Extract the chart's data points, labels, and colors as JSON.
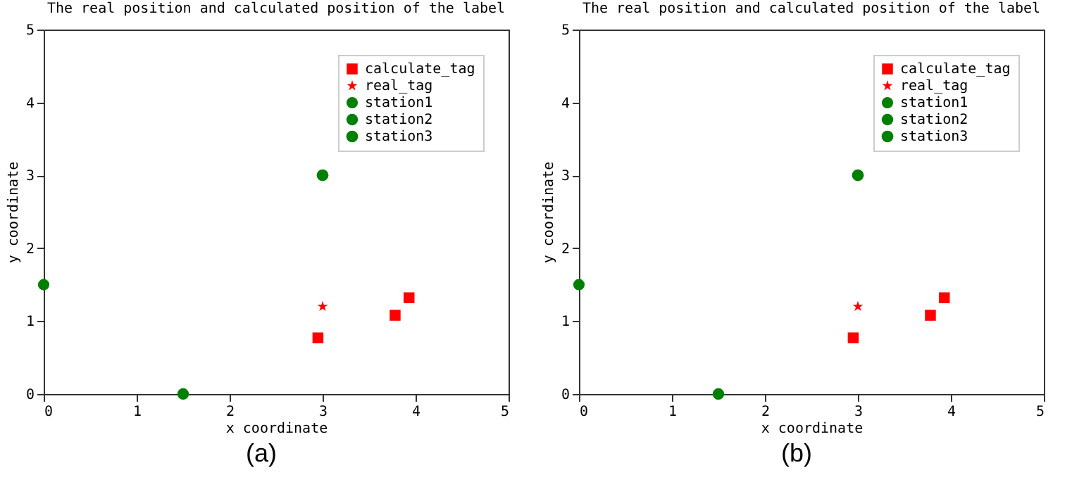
{
  "chart_data": [
    {
      "type": "scatter",
      "title": "The real position and calculated position of the label",
      "xlabel": "x coordinate",
      "ylabel": "y coordinate",
      "xlim": [
        0,
        5
      ],
      "ylim": [
        0,
        5
      ],
      "xticks": [
        0,
        1,
        2,
        3,
        4,
        5
      ],
      "yticks": [
        0,
        1,
        2,
        3,
        4,
        5
      ],
      "grid": false,
      "legend": "top right",
      "annotations": [
        "(a)"
      ],
      "series": [
        {
          "name": "calculate_tag",
          "color": "#ff0000",
          "marker": "square",
          "x": [
            2.95,
            3.78,
            3.93
          ],
          "values": [
            0.77,
            1.08,
            1.32
          ]
        },
        {
          "name": "real_tag",
          "color": "#ff0000",
          "marker": "star",
          "x": [
            3
          ],
          "values": [
            1.2
          ]
        },
        {
          "name": "station1",
          "color": "#008000",
          "marker": "circle",
          "x": [
            0
          ],
          "values": [
            1.5
          ]
        },
        {
          "name": "station2",
          "color": "#008000",
          "marker": "circle",
          "x": [
            1.5
          ],
          "values": [
            0
          ]
        },
        {
          "name": "station3",
          "color": "#008000",
          "marker": "circle",
          "x": [
            3
          ],
          "values": [
            3
          ]
        }
      ]
    },
    {
      "type": "scatter",
      "title": "The real position and calculated position of the label",
      "xlabel": "x coordinate",
      "ylabel": "y coordinate",
      "xlim": [
        0,
        5
      ],
      "ylim": [
        0,
        5
      ],
      "xticks": [
        0,
        1,
        2,
        3,
        4,
        5
      ],
      "yticks": [
        0,
        1,
        2,
        3,
        4,
        5
      ],
      "grid": false,
      "legend": "top right",
      "annotations": [
        "(b)"
      ],
      "series": [
        {
          "name": "calculate_tag",
          "color": "#ff0000",
          "marker": "square",
          "x": [
            2.95,
            3.78,
            3.93
          ],
          "values": [
            0.77,
            1.08,
            1.32
          ]
        },
        {
          "name": "real_tag",
          "color": "#ff0000",
          "marker": "star",
          "x": [
            3
          ],
          "values": [
            1.2
          ]
        },
        {
          "name": "station1",
          "color": "#008000",
          "marker": "circle",
          "x": [
            0
          ],
          "values": [
            1.5
          ]
        },
        {
          "name": "station2",
          "color": "#008000",
          "marker": "circle",
          "x": [
            1.5
          ],
          "values": [
            0
          ]
        },
        {
          "name": "station3",
          "color": "#008000",
          "marker": "circle",
          "x": [
            3
          ],
          "values": [
            3
          ]
        }
      ]
    }
  ]
}
